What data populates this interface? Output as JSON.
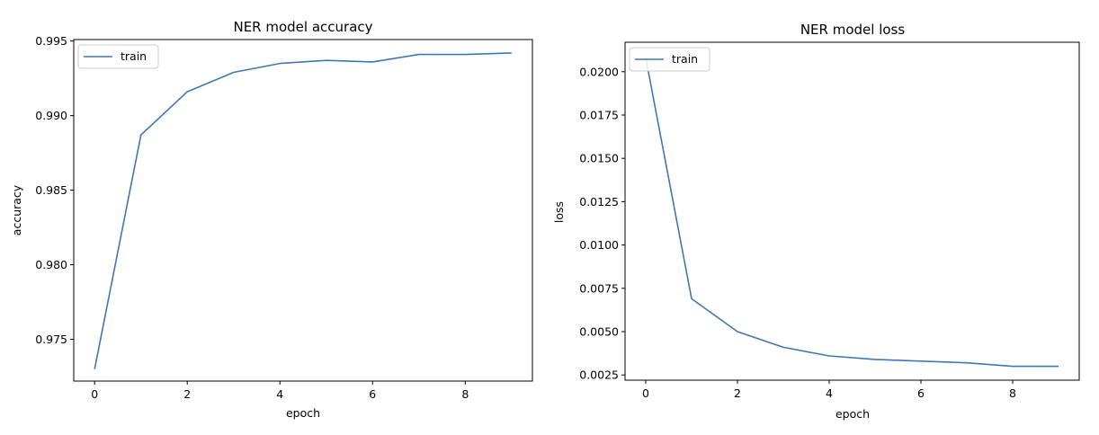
{
  "chart_data": [
    {
      "type": "line",
      "title": "NER model accuracy",
      "xlabel": "epoch",
      "ylabel": "accuracy",
      "xlim": [
        -0.45,
        9.45
      ],
      "ylim": [
        0.9722,
        0.9951
      ],
      "xticks": [
        0,
        2,
        4,
        6,
        8
      ],
      "xtick_labels": [
        "0",
        "2",
        "4",
        "6",
        "8"
      ],
      "yticks": [
        0.975,
        0.98,
        0.985,
        0.99,
        0.995
      ],
      "ytick_labels": [
        "0.975",
        "0.980",
        "0.985",
        "0.990",
        "0.995"
      ],
      "legend_position": "upper-left",
      "series": [
        {
          "name": "train",
          "color": "#3f77b2",
          "x": [
            0,
            1,
            2,
            3,
            4,
            5,
            6,
            7,
            8,
            9
          ],
          "y": [
            0.973,
            0.9887,
            0.9916,
            0.9929,
            0.9935,
            0.9937,
            0.9936,
            0.9941,
            0.9941,
            0.9942
          ]
        }
      ]
    },
    {
      "type": "line",
      "title": "NER model loss",
      "xlabel": "epoch",
      "ylabel": "loss",
      "xlim": [
        -0.45,
        9.45
      ],
      "ylim": [
        0.0022,
        0.0217
      ],
      "xticks": [
        0,
        2,
        4,
        6,
        8
      ],
      "xtick_labels": [
        "0",
        "2",
        "4",
        "6",
        "8"
      ],
      "yticks": [
        0.0025,
        0.005,
        0.0075,
        0.01,
        0.0125,
        0.015,
        0.0175,
        0.02
      ],
      "ytick_labels": [
        "0.0025",
        "0.0050",
        "0.0075",
        "0.0100",
        "0.0125",
        "0.0150",
        "0.0175",
        "0.0200"
      ],
      "legend_position": "upper-left",
      "series": [
        {
          "name": "train",
          "color": "#3f77b2",
          "x": [
            0,
            1,
            2,
            3,
            4,
            5,
            6,
            7,
            8,
            9
          ],
          "y": [
            0.0208,
            0.0069,
            0.005,
            0.0041,
            0.0036,
            0.0034,
            0.0033,
            0.0032,
            0.003,
            0.003
          ]
        }
      ]
    }
  ]
}
